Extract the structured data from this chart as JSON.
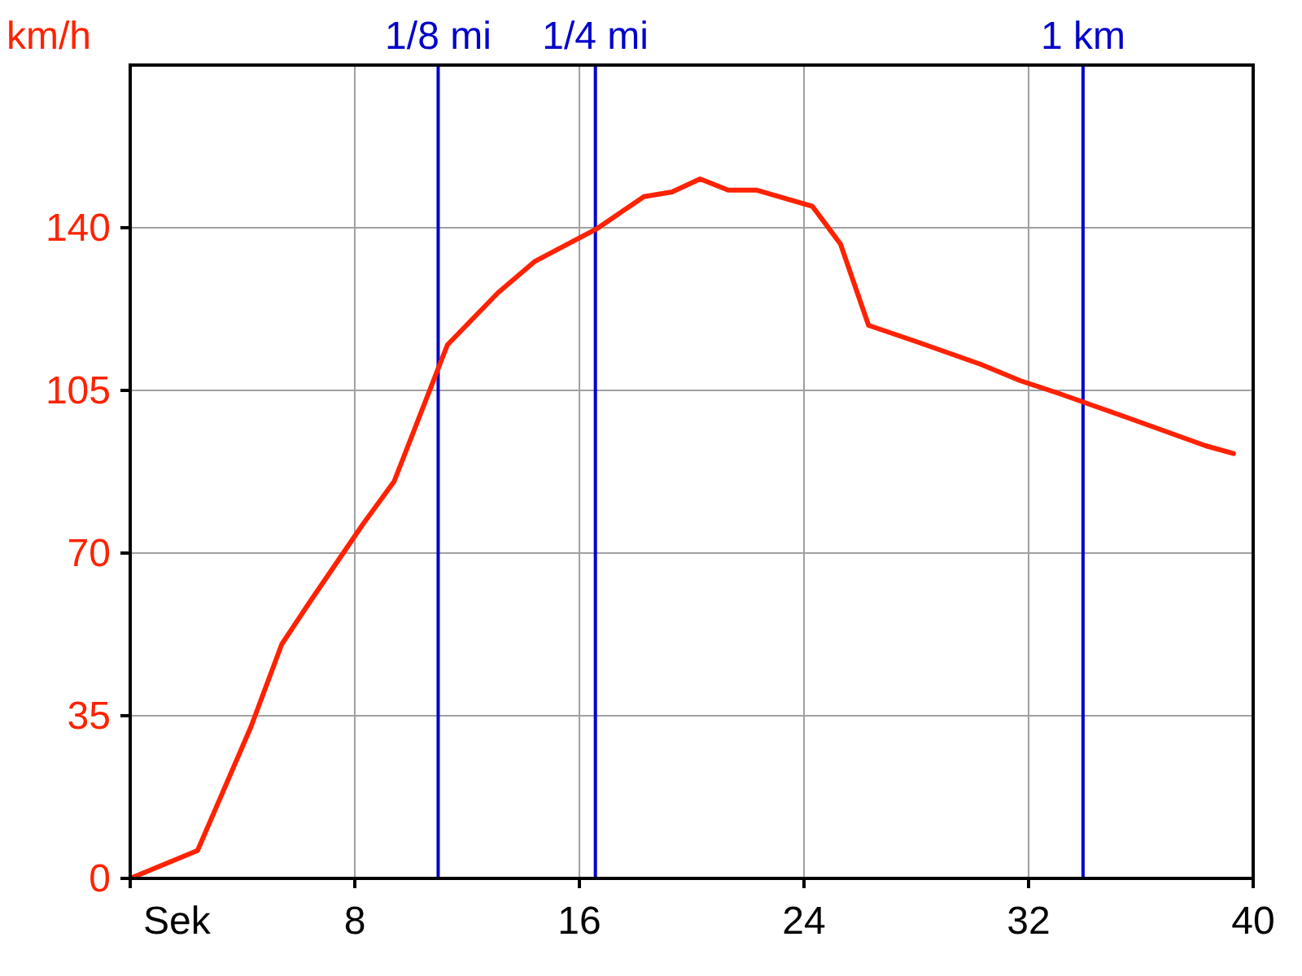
{
  "chart_data": {
    "type": "line",
    "xlabel": "Sek",
    "ylabel": "km/h",
    "x": [
      0,
      2.4,
      4.3,
      5.4,
      6.4,
      8.3,
      9.4,
      11.3,
      13.1,
      14.4,
      15.5,
      16.6,
      18.3,
      19.3,
      20.3,
      21.3,
      22.3,
      24.3,
      25.3,
      26.3,
      28,
      30.3,
      31.7,
      33.1,
      35.4,
      38.3,
      39.3
    ],
    "series": [
      {
        "color": "#ff2200",
        "values": [
          0,
          6,
          32.6,
          50.4,
          59.5,
          76.3,
          85.4,
          114.8,
          126,
          132.7,
          136.2,
          139.7,
          146.7,
          147.7,
          150.5,
          148.1,
          148.1,
          144.6,
          136.5,
          119,
          115.5,
          110.6,
          107.1,
          104.3,
          99.4,
          93.1,
          91.4
        ]
      }
    ],
    "xlim": [
      0,
      40
    ],
    "xticks": [
      {
        "value": 0,
        "label": null
      },
      8,
      16,
      24,
      32,
      40
    ],
    "ylim": [
      0,
      175
    ],
    "yticks": [
      0,
      35,
      70,
      105,
      140
    ],
    "grid": true,
    "marker": "none",
    "line_style": "solid",
    "ref_lines": [
      {
        "axis": "x",
        "value": 10.97,
        "label": "1/8 mi",
        "color": "#0000cc"
      },
      {
        "axis": "x",
        "value": 16.57,
        "label": "1/4 mi",
        "color": "#0000cc"
      },
      {
        "axis": "x",
        "value": 33.94,
        "label": "1 km",
        "color": "#0000cc"
      }
    ]
  }
}
